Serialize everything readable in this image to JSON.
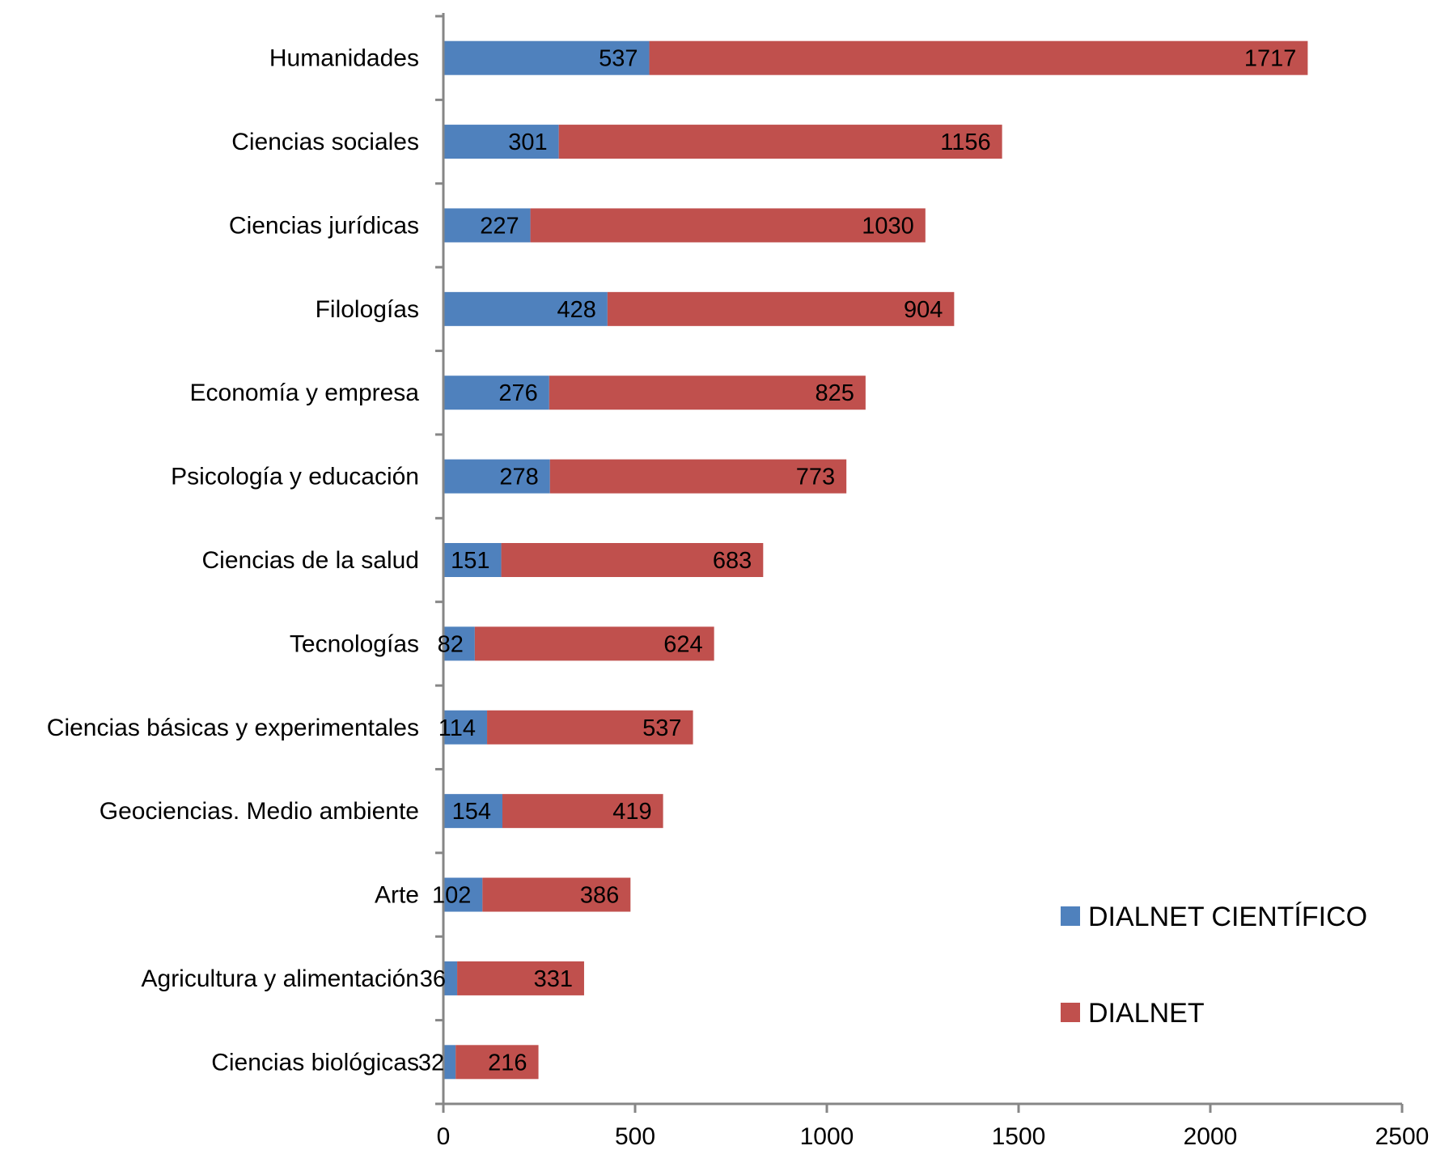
{
  "chart_data": {
    "type": "bar",
    "orientation": "horizontal",
    "stacked": true,
    "title": "",
    "xlabel": "",
    "ylabel": "",
    "categories": [
      "Humanidades",
      "Ciencias sociales",
      "Ciencias jurídicas",
      "Filologías",
      "Economía y empresa",
      "Psicología y educación",
      "Ciencias de la salud",
      "Tecnologías",
      "Ciencias básicas y experimentales",
      "Geociencias. Medio ambiente",
      "Arte",
      "Agricultura y alimentación",
      "Ciencias biológicas"
    ],
    "series": [
      {
        "name": "DIALNET CIENTÍFICO",
        "color": "#4F81BD",
        "values": [
          537,
          301,
          227,
          428,
          276,
          278,
          151,
          82,
          114,
          154,
          102,
          36,
          32
        ]
      },
      {
        "name": "DIALNET",
        "color": "#C0504D",
        "values": [
          1717,
          1156,
          1030,
          904,
          825,
          773,
          683,
          624,
          537,
          419,
          386,
          331,
          216
        ]
      }
    ],
    "xlim": [
      0,
      2500
    ],
    "xticks": [
      0,
      500,
      1000,
      1500,
      2000,
      2500
    ],
    "grid": false,
    "legend_position": "right"
  }
}
